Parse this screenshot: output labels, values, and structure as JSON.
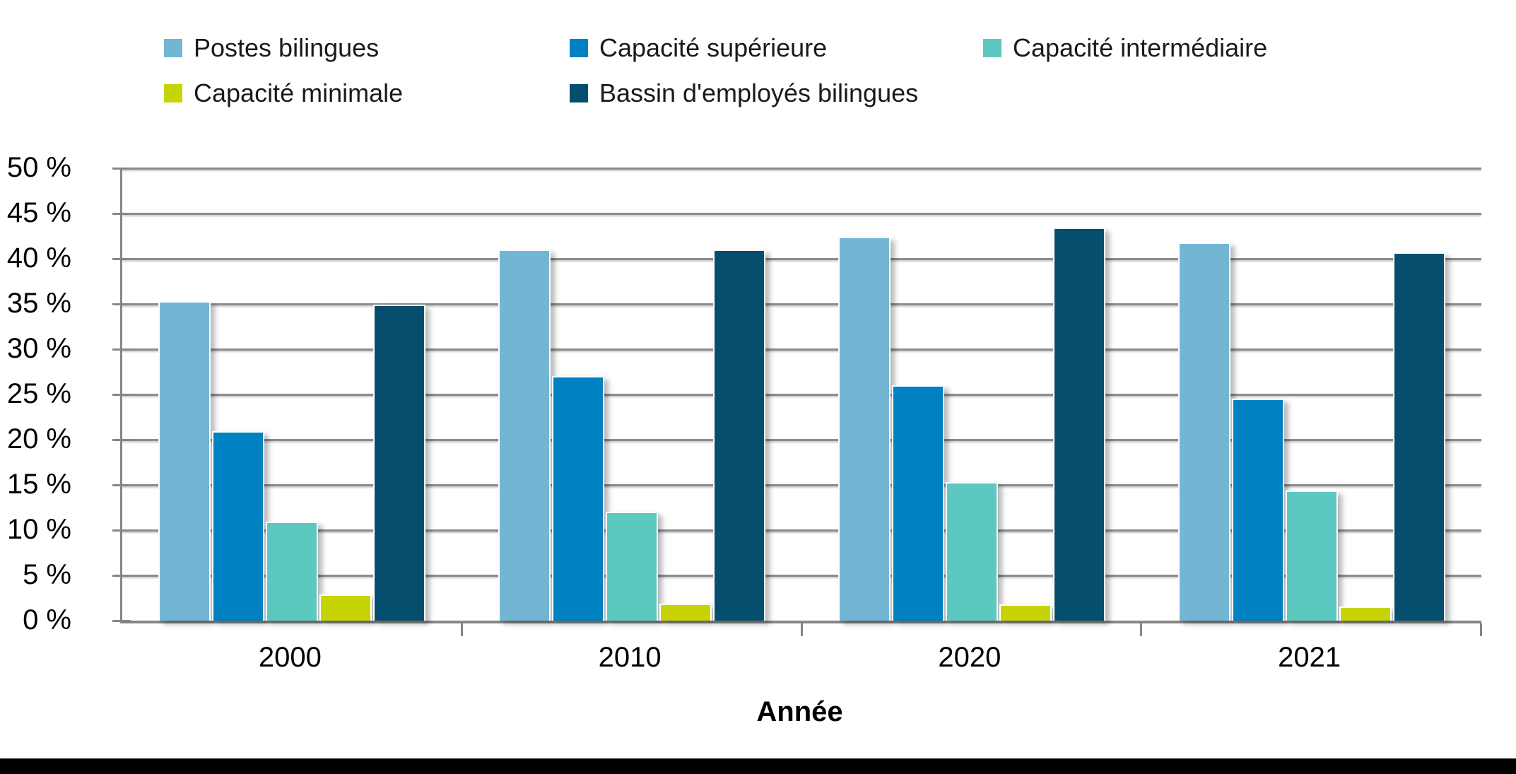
{
  "chart_data": {
    "type": "bar",
    "title": "",
    "categories": [
      "2000",
      "2010",
      "2020",
      "2021"
    ],
    "series": [
      {
        "name": "Postes bilingues",
        "color": "#73B6D3",
        "values": [
          35.3,
          41.0,
          42.4,
          41.8
        ]
      },
      {
        "name": "Capacité supérieure",
        "color": "#0081C1",
        "values": [
          20.9,
          27.0,
          26.0,
          24.5
        ]
      },
      {
        "name": "Capacité intermédiaire",
        "color": "#5CC8C0",
        "values": [
          10.9,
          12.0,
          15.3,
          14.4
        ]
      },
      {
        "name": "Capacité minimale",
        "color": "#C6D405",
        "values": [
          2.9,
          1.9,
          1.8,
          1.6
        ]
      },
      {
        "name": "Bassin d'employés bilingues",
        "color": "#064E6E",
        "values": [
          34.9,
          41.0,
          43.4,
          40.7
        ]
      }
    ],
    "xlabel": "Année",
    "ylabel": "",
    "ylim": [
      0,
      50
    ],
    "ytick_step": 5,
    "ytick_labels": [
      "0 %",
      "5 %",
      "10 %",
      "15 %",
      "20 %",
      "25 %",
      "30 %",
      "35 %",
      "40 %",
      "45 %",
      "50 %"
    ],
    "grid": true,
    "legend_position": "top",
    "gridline_color": "#8C8C8C",
    "axis_color": "#868686",
    "footer_band_color": "#000000"
  }
}
